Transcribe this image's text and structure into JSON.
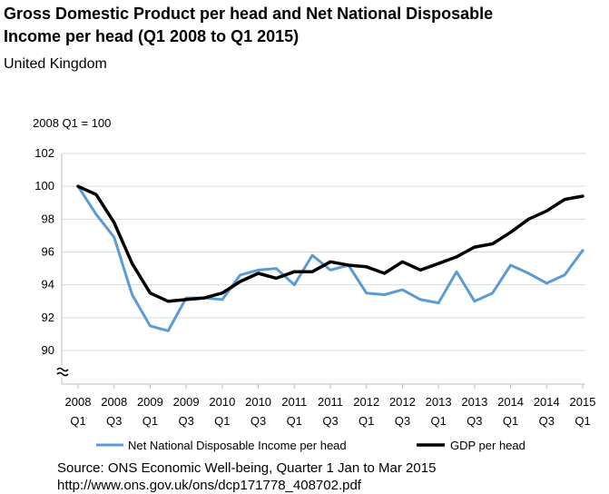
{
  "header": {
    "title_line1": "Gross Domestic Product per head and Net National Disposable",
    "title_line2": "Income per head  (Q1 2008 to Q1 2015)",
    "subtitle": "United Kingdom"
  },
  "footer": {
    "source_line1": "Source: ONS  Economic Well-being, Quarter 1 Jan to Mar 2015",
    "source_line2": "http://www.ons.gov.uk/ons/dcp171778_408702.pdf"
  },
  "chart_data": {
    "type": "line",
    "title": "Gross Domestic Product per head and Net National Disposable Income per head  (Q1 2008 to Q1 2015)",
    "subtitle": "United Kingdom",
    "ylabel": "2008 Q1 = 100",
    "xlabel": "",
    "ylim": [
      89,
      102
    ],
    "yticks": [
      90,
      92,
      94,
      96,
      98,
      100,
      102
    ],
    "axis_break": true,
    "grid": "horizontal",
    "legend_position": "bottom",
    "x_tick_labels": [
      {
        "year": "2008",
        "quarter": "Q1"
      },
      {
        "year": "2008",
        "quarter": "Q3"
      },
      {
        "year": "2009",
        "quarter": "Q1"
      },
      {
        "year": "2009",
        "quarter": "Q3"
      },
      {
        "year": "2010",
        "quarter": "Q1"
      },
      {
        "year": "2010",
        "quarter": "Q3"
      },
      {
        "year": "2011",
        "quarter": "Q1"
      },
      {
        "year": "2011",
        "quarter": "Q3"
      },
      {
        "year": "2012",
        "quarter": "Q1"
      },
      {
        "year": "2012",
        "quarter": "Q3"
      },
      {
        "year": "2013",
        "quarter": "Q1"
      },
      {
        "year": "2013",
        "quarter": "Q3"
      },
      {
        "year": "2014",
        "quarter": "Q1"
      },
      {
        "year": "2014",
        "quarter": "Q3"
      },
      {
        "year": "2015",
        "quarter": "Q1"
      }
    ],
    "x": [
      "2008 Q1",
      "2008 Q2",
      "2008 Q3",
      "2008 Q4",
      "2009 Q1",
      "2009 Q2",
      "2009 Q3",
      "2009 Q4",
      "2010 Q1",
      "2010 Q2",
      "2010 Q3",
      "2010 Q4",
      "2011 Q1",
      "2011 Q2",
      "2011 Q3",
      "2011 Q4",
      "2012 Q1",
      "2012 Q2",
      "2012 Q3",
      "2012 Q4",
      "2013 Q1",
      "2013 Q2",
      "2013 Q3",
      "2013 Q4",
      "2014 Q1",
      "2014 Q2",
      "2014 Q3",
      "2014 Q4",
      "2015 Q1"
    ],
    "series": [
      {
        "name": "Net National  Disposable  Income per head",
        "color": "#5b9bd5",
        "values": [
          100,
          98.3,
          96.9,
          93.4,
          91.5,
          91.2,
          93.2,
          93.2,
          93.1,
          94.6,
          94.9,
          95.0,
          94.0,
          95.8,
          94.9,
          95.2,
          93.5,
          93.4,
          93.7,
          93.1,
          92.9,
          94.8,
          93.0,
          93.5,
          95.2,
          94.7,
          94.1,
          94.6,
          96.1
        ]
      },
      {
        "name": "GDP per head",
        "color": "#000000",
        "values": [
          100,
          99.5,
          97.8,
          95.3,
          93.5,
          93.0,
          93.1,
          93.2,
          93.5,
          94.2,
          94.7,
          94.4,
          94.8,
          94.8,
          95.4,
          95.2,
          95.1,
          94.7,
          95.4,
          94.9,
          95.3,
          95.7,
          96.3,
          96.5,
          97.2,
          98.0,
          98.5,
          99.2,
          99.4
        ]
      }
    ]
  }
}
